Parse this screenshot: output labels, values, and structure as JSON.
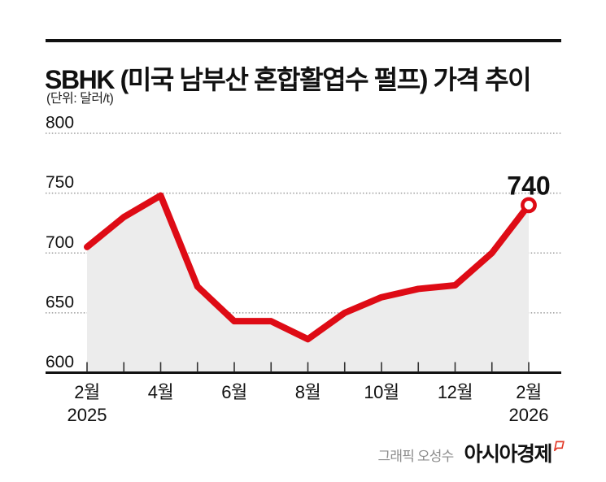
{
  "header": {
    "title": "SBHK (미국 남부산 혼합활엽수 펄프) 가격 추이",
    "unit_note": "(단위: 달러/t)"
  },
  "footer": {
    "credit": "그래픽 오성수",
    "brand": "아시아경제"
  },
  "colors": {
    "line": "#de0b15",
    "area": "#ececec",
    "grid": "#9b9b9b",
    "ink": "#111111",
    "tick": "#333333",
    "credit_text": "#8c8c8c",
    "brand_mark": "#e23a28"
  },
  "chart_data": {
    "type": "line",
    "title": "SBHK (미국 남부산 혼합활엽수 펄프) 가격 추이",
    "unit": "(단위: 달러/t)",
    "series_name": "SBHK 가격",
    "categories": [
      "2025-02",
      "2025-03",
      "2025-04",
      "2025-05",
      "2025-06",
      "2025-07",
      "2025-08",
      "2025-09",
      "2025-10",
      "2025-11",
      "2025-12",
      "2026-01",
      "2026-02"
    ],
    "values": [
      705,
      730,
      748,
      672,
      643,
      643,
      628,
      650,
      663,
      670,
      673,
      700,
      740
    ],
    "ylim": [
      600,
      800
    ],
    "yticks": [
      600,
      650,
      700,
      750,
      800
    ],
    "x_tick_labels": [
      {
        "index": 0,
        "label": "2월",
        "year": "2025"
      },
      {
        "index": 2,
        "label": "4월"
      },
      {
        "index": 4,
        "label": "6월"
      },
      {
        "index": 6,
        "label": "8월"
      },
      {
        "index": 8,
        "label": "10월"
      },
      {
        "index": 10,
        "label": "12월"
      },
      {
        "index": 12,
        "label": "2월",
        "year": "2026"
      }
    ],
    "end_label": "740",
    "grid": "dotted-horizontal",
    "legend": "none",
    "marker": "last-point-open-circle",
    "area_fill": true
  }
}
